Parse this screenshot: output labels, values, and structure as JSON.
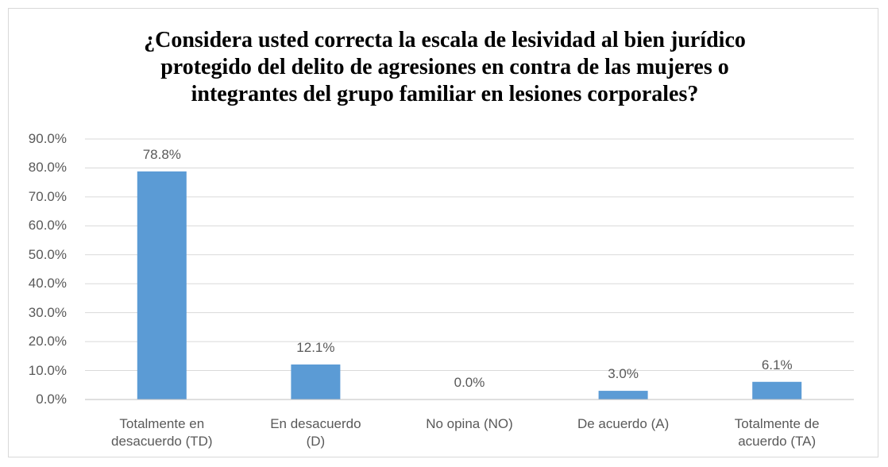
{
  "chart_data": {
    "type": "bar",
    "title": "¿Considera usted correcta la escala de lesividad al bien jurídico protegido del delito de agresiones en contra de las mujeres o integrantes del grupo familiar en lesiones corporales?",
    "categories": [
      "Totalmente en desacuerdo (TD)",
      "En desacuerdo (D)",
      "No opina (NO)",
      "De acuerdo (A)",
      "Totalmente de acuerdo (TA)"
    ],
    "values": [
      78.8,
      12.1,
      0.0,
      3.0,
      6.1
    ],
    "value_labels": [
      "78.8%",
      "12.1%",
      "0.0%",
      "3.0%",
      "6.1%"
    ],
    "color": "#5b9bd5",
    "ylim": [
      0,
      90
    ],
    "yticks": [
      {
        "value": 0,
        "label": "0.0%"
      },
      {
        "value": 10,
        "label": "10.0%"
      },
      {
        "value": 20,
        "label": "20.0%"
      },
      {
        "value": 30,
        "label": "30.0%"
      },
      {
        "value": 40,
        "label": "40.0%"
      },
      {
        "value": 50,
        "label": "50.0%"
      },
      {
        "value": 60,
        "label": "60.0%"
      },
      {
        "value": 70,
        "label": "70.0%"
      },
      {
        "value": 80,
        "label": "80.0%"
      },
      {
        "value": 90,
        "label": "90.0%"
      }
    ],
    "grid": true
  }
}
